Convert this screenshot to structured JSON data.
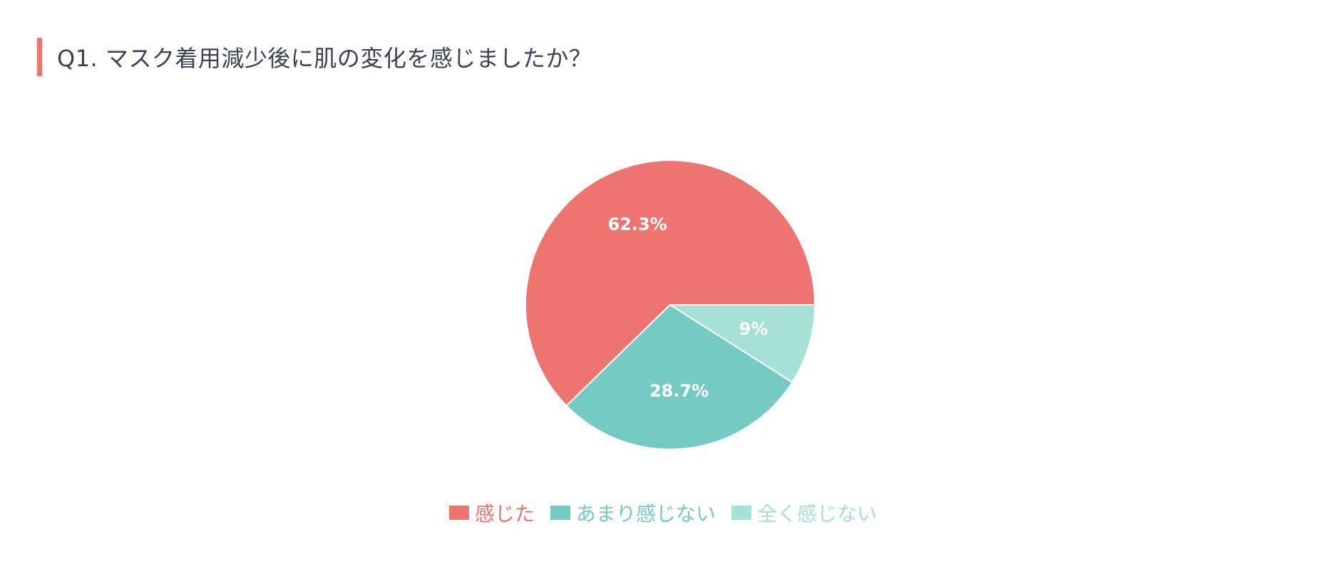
{
  "question": {
    "title": "Q1. マスク着用減少後に肌の変化を感じましたか？",
    "accent_color": "#ee7470"
  },
  "chart_data": {
    "type": "pie",
    "title": "Q1. マスク着用減少後に肌の変化を感じましたか？",
    "start_angle_deg": 0,
    "direction": "counterclockwise",
    "legend_position": "bottom",
    "slices": [
      {
        "label": "感じた",
        "value": 62.3,
        "display": "62.3%",
        "color": "#ee7470"
      },
      {
        "label": "あまり感じない",
        "value": 28.7,
        "display": "28.7%",
        "color": "#75cbc1"
      },
      {
        "label": "全く感じない",
        "value": 9.0,
        "display": "9%",
        "color": "#a6e1d5"
      }
    ]
  }
}
